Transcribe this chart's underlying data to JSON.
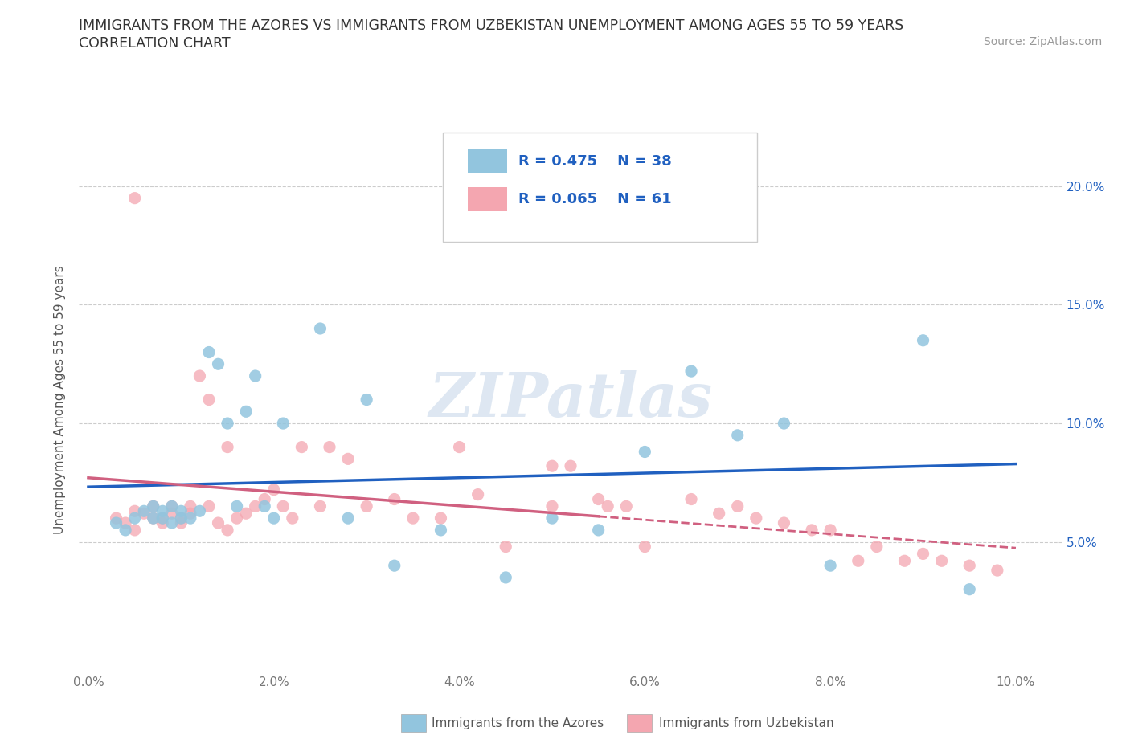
{
  "title_line1": "IMMIGRANTS FROM THE AZORES VS IMMIGRANTS FROM UZBEKISTAN UNEMPLOYMENT AMONG AGES 55 TO 59 YEARS",
  "title_line2": "CORRELATION CHART",
  "source_text": "Source: ZipAtlas.com",
  "ylabel": "Unemployment Among Ages 55 to 59 years",
  "xlim": [
    -0.001,
    0.105
  ],
  "ylim": [
    -0.005,
    0.225
  ],
  "xticks": [
    0.0,
    0.02,
    0.04,
    0.06,
    0.08,
    0.1
  ],
  "yticks": [
    0.05,
    0.1,
    0.15,
    0.2
  ],
  "ytick_labels": [
    "5.0%",
    "10.0%",
    "15.0%",
    "20.0%"
  ],
  "xtick_labels": [
    "0.0%",
    "2.0%",
    "4.0%",
    "6.0%",
    "8.0%",
    "10.0%"
  ],
  "color_azores": "#92c5de",
  "color_uzbekistan": "#f4a6b0",
  "legend_R_azores": "R = 0.475",
  "legend_N_azores": "N = 38",
  "legend_R_uzbekistan": "R = 0.065",
  "legend_N_uzbekistan": "N = 61",
  "watermark": "ZIPatlas",
  "azores_x": [
    0.003,
    0.004,
    0.005,
    0.006,
    0.007,
    0.007,
    0.008,
    0.008,
    0.009,
    0.009,
    0.01,
    0.01,
    0.011,
    0.012,
    0.013,
    0.014,
    0.015,
    0.016,
    0.017,
    0.018,
    0.019,
    0.02,
    0.021,
    0.025,
    0.028,
    0.03,
    0.033,
    0.038,
    0.045,
    0.05,
    0.055,
    0.06,
    0.065,
    0.07,
    0.075,
    0.08,
    0.09,
    0.095
  ],
  "azores_y": [
    0.058,
    0.055,
    0.06,
    0.063,
    0.065,
    0.06,
    0.06,
    0.063,
    0.065,
    0.058,
    0.06,
    0.063,
    0.06,
    0.063,
    0.13,
    0.125,
    0.1,
    0.065,
    0.105,
    0.12,
    0.065,
    0.06,
    0.1,
    0.14,
    0.06,
    0.11,
    0.04,
    0.055,
    0.035,
    0.06,
    0.055,
    0.088,
    0.122,
    0.095,
    0.1,
    0.04,
    0.135,
    0.03
  ],
  "uzbekistan_x": [
    0.003,
    0.004,
    0.005,
    0.005,
    0.006,
    0.007,
    0.007,
    0.008,
    0.008,
    0.009,
    0.009,
    0.01,
    0.01,
    0.011,
    0.011,
    0.012,
    0.013,
    0.013,
    0.014,
    0.015,
    0.015,
    0.016,
    0.017,
    0.018,
    0.019,
    0.02,
    0.021,
    0.022,
    0.023,
    0.025,
    0.026,
    0.028,
    0.03,
    0.033,
    0.035,
    0.038,
    0.04,
    0.042,
    0.045,
    0.05,
    0.05,
    0.052,
    0.055,
    0.056,
    0.058,
    0.06,
    0.065,
    0.068,
    0.07,
    0.072,
    0.075,
    0.078,
    0.08,
    0.083,
    0.085,
    0.088,
    0.09,
    0.092,
    0.095,
    0.098,
    0.005
  ],
  "uzbekistan_y": [
    0.06,
    0.058,
    0.055,
    0.063,
    0.062,
    0.06,
    0.065,
    0.058,
    0.06,
    0.062,
    0.065,
    0.058,
    0.06,
    0.062,
    0.065,
    0.12,
    0.11,
    0.065,
    0.058,
    0.055,
    0.09,
    0.06,
    0.062,
    0.065,
    0.068,
    0.072,
    0.065,
    0.06,
    0.09,
    0.065,
    0.09,
    0.085,
    0.065,
    0.068,
    0.06,
    0.06,
    0.09,
    0.07,
    0.048,
    0.082,
    0.065,
    0.082,
    0.068,
    0.065,
    0.065,
    0.048,
    0.068,
    0.062,
    0.065,
    0.06,
    0.058,
    0.055,
    0.055,
    0.042,
    0.048,
    0.042,
    0.045,
    0.042,
    0.04,
    0.038,
    0.195
  ],
  "trend_color_azores": "#2060c0",
  "trend_color_uzbekistan": "#d06080",
  "background_color": "#ffffff",
  "grid_color": "#cccccc"
}
